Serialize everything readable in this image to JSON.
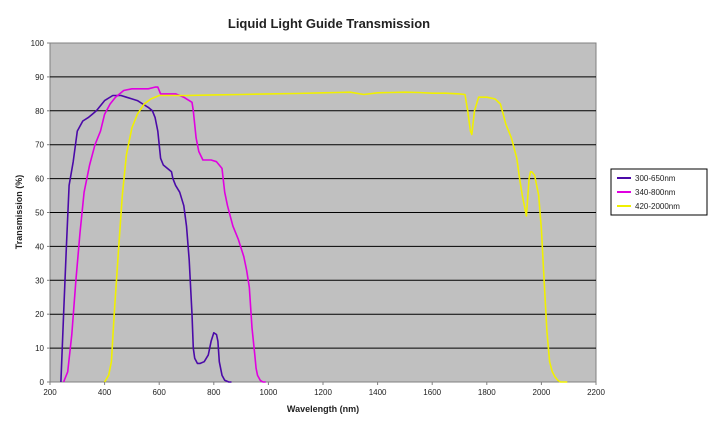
{
  "chart_data": {
    "type": "line",
    "title": "Liquid Light Guide Transmission",
    "xlabel": "Wavelength (nm)",
    "ylabel": "Transmission (%)",
    "xlim": [
      200,
      2200
    ],
    "ylim": [
      0,
      100
    ],
    "xticks": [
      200,
      400,
      600,
      800,
      1000,
      1200,
      1400,
      1600,
      1800,
      2000,
      2200
    ],
    "yticks": [
      0,
      10,
      20,
      30,
      40,
      50,
      60,
      70,
      80,
      90,
      100
    ],
    "grid": true,
    "legend_position": "right",
    "plot_background": "#c0c0c0",
    "series": [
      {
        "name": "300-650nm",
        "color": "#4b0aa8",
        "x": [
          240,
          250,
          260,
          270,
          285,
          300,
          320,
          340,
          355,
          370,
          400,
          430,
          460,
          480,
          500,
          520,
          540,
          560,
          575,
          585,
          595,
          605,
          615,
          630,
          645,
          650,
          660,
          675,
          690,
          700,
          710,
          720,
          725,
          730,
          740,
          750,
          765,
          780,
          790,
          800,
          810,
          815,
          820,
          830,
          840,
          855,
          865
        ],
        "y": [
          0,
          20,
          40,
          58,
          65,
          74,
          77,
          78,
          79,
          80,
          83,
          84.5,
          84.5,
          84,
          83.5,
          83,
          82,
          81,
          80,
          78,
          74,
          66,
          64,
          63,
          62,
          60,
          58,
          56,
          52,
          46,
          36,
          20,
          10,
          7,
          5.5,
          5.5,
          6,
          8,
          12,
          14.5,
          14,
          12,
          6,
          2,
          0.5,
          0,
          0
        ]
      },
      {
        "name": "340-800nm",
        "color": "#e000e0",
        "x": [
          250,
          265,
          280,
          295,
          310,
          325,
          345,
          365,
          385,
          400,
          420,
          440,
          470,
          500,
          530,
          560,
          585,
          595,
          605,
          630,
          660,
          675,
          690,
          700,
          710,
          720,
          725,
          735,
          745,
          760,
          790,
          810,
          830,
          840,
          850,
          860,
          870,
          890,
          910,
          920,
          930,
          940,
          950,
          955,
          960,
          970,
          980,
          990
        ],
        "y": [
          0,
          3,
          14,
          30,
          44,
          56,
          64,
          70,
          74,
          79,
          82,
          84,
          86,
          86.5,
          86.5,
          86.5,
          87,
          87,
          85,
          85,
          85,
          84.5,
          84,
          83.5,
          83,
          82.5,
          80,
          72,
          68,
          65.5,
          65.5,
          65,
          63,
          56,
          52,
          49,
          46,
          42,
          37,
          33,
          28,
          16,
          8,
          4,
          2,
          0.5,
          0,
          0
        ]
      },
      {
        "name": "420-2000nm",
        "color": "#f0f000",
        "x": [
          400,
          415,
          425,
          435,
          450,
          465,
          480,
          500,
          520,
          545,
          570,
          600,
          650,
          700,
          800,
          900,
          1000,
          1100,
          1200,
          1250,
          1300,
          1350,
          1400,
          1450,
          1500,
          1550,
          1600,
          1650,
          1700,
          1720,
          1730,
          1740,
          1745,
          1755,
          1770,
          1800,
          1830,
          1850,
          1860,
          1870,
          1890,
          1910,
          1920,
          1930,
          1945,
          1955,
          1960,
          1965,
          1975,
          1990,
          2000,
          2010,
          2020,
          2030,
          2040,
          2050,
          2060,
          2070,
          2080,
          2095
        ],
        "y": [
          0,
          2,
          6,
          20,
          38,
          55,
          67,
          75,
          79,
          82,
          83.5,
          84.5,
          84.5,
          84.5,
          84.7,
          84.8,
          85,
          85.1,
          85.3,
          85.4,
          85.5,
          84.8,
          85.3,
          85.4,
          85.5,
          85.4,
          85.2,
          85.2,
          85,
          84.8,
          80,
          74,
          73,
          80,
          84,
          84,
          83.5,
          82,
          79,
          76,
          72,
          66,
          60,
          55,
          49,
          60,
          62,
          62,
          61,
          55,
          45,
          30,
          15,
          6,
          3,
          1.5,
          0.5,
          0,
          0,
          0
        ]
      }
    ]
  }
}
